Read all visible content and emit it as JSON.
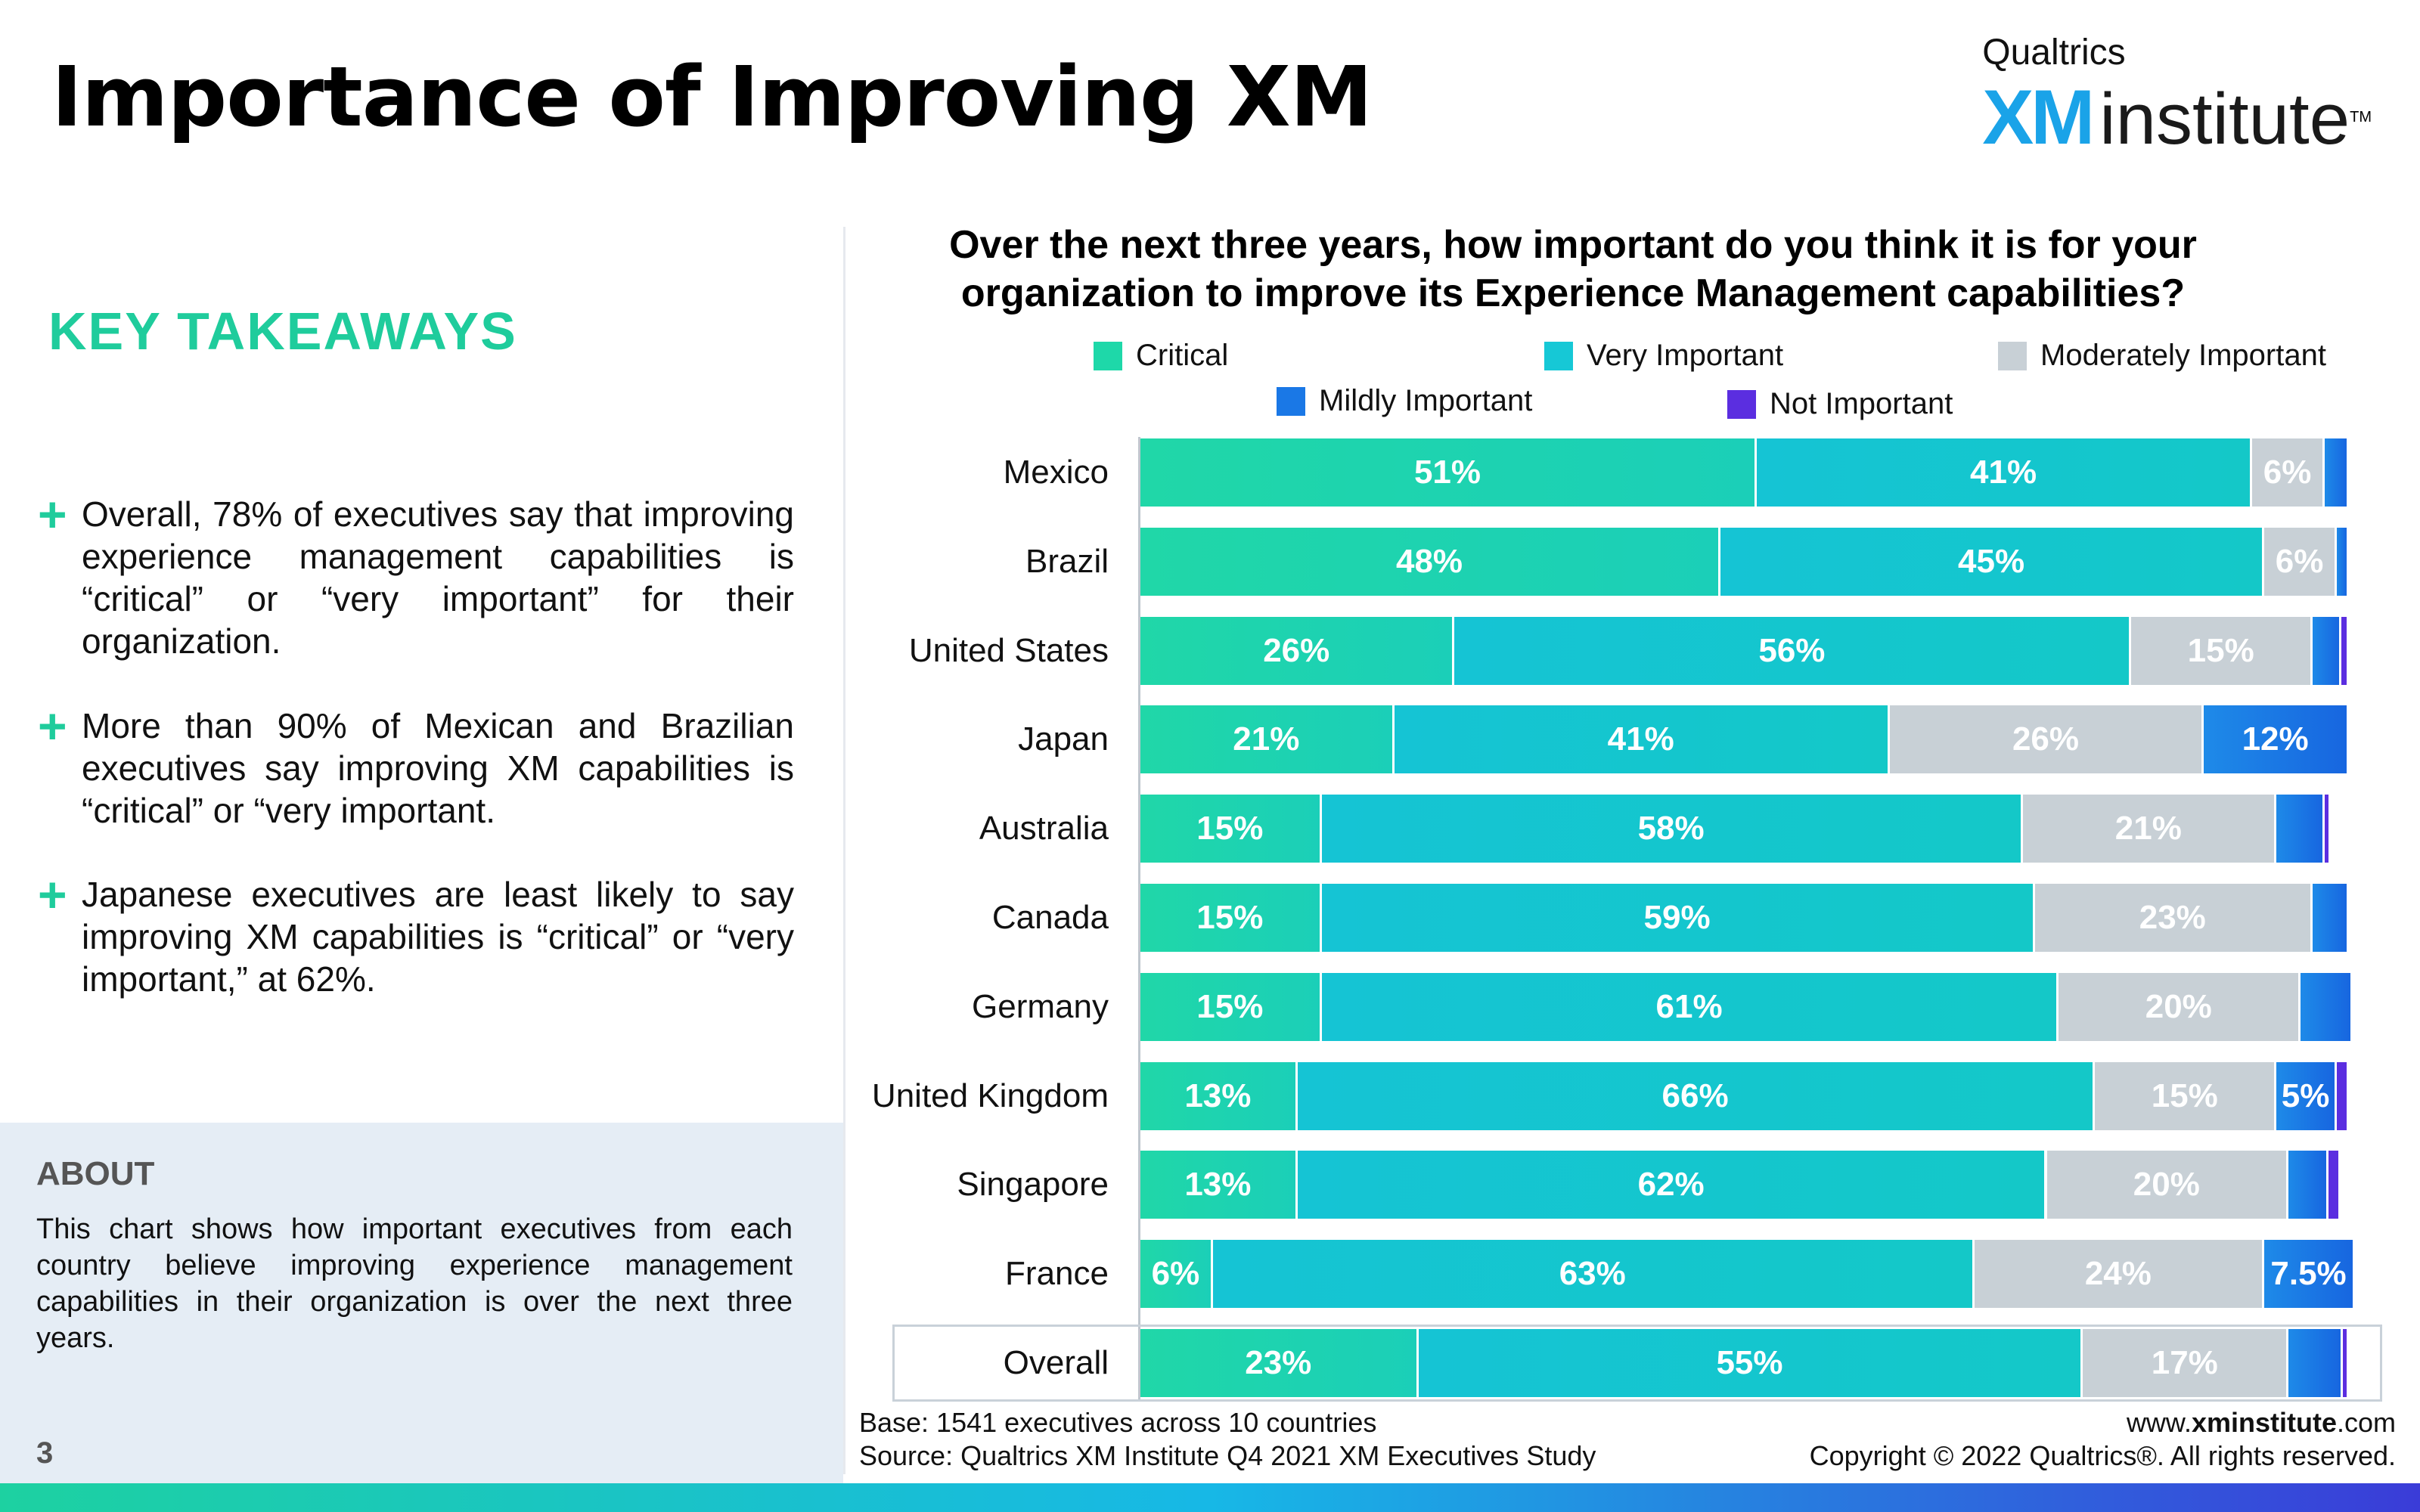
{
  "header": {
    "title": "Importance of Improving XM",
    "logo": {
      "brand": "Qualtrics",
      "xm": "XM",
      "institute": "institute",
      "tm": "TM"
    }
  },
  "takeaways": {
    "heading": "KEY TAKEAWAYS",
    "bullet_symbol": "+",
    "items": [
      "Overall, 78% of executives say that improving experience management capabilities is “critical” or “very important” for their organization.",
      "More than 90% of Mexican and Brazilian executives say improving XM capabilities is “critical” or “very important.",
      "Japanese executives are least likely to say improving XM capabilities is “critical” or “very important,” at 62%."
    ]
  },
  "about": {
    "heading": "ABOUT",
    "text": "This chart shows how important executives from each country believe improving experience management capabilities in their organization is over the next three years."
  },
  "page_number": "3",
  "footer": {
    "base": "Base: 1541 executives across 10 countries",
    "source": "Source: Qualtrics XM Institute Q4 2021 XM Executives Study",
    "url_prefix": "www.",
    "url_bold": "xminstitute",
    "url_suffix": ".com",
    "copyright": "Copyright © 2022 Qualtrics®. All rights reserved."
  },
  "colors": {
    "critical": "#1ed8a9",
    "very_important": "#16c8d6",
    "moderately_important": "#c8d0d6",
    "mildly_important": "#1a78e6",
    "not_important": "#5b2ee0"
  },
  "chart_data": {
    "type": "bar",
    "orientation": "horizontal",
    "stacked": true,
    "title": "Over the next three years, how important do you think it is for your organization to improve its Experience Management capabilities?",
    "categories": [
      "Mexico",
      "Brazil",
      "United States",
      "Japan",
      "Australia",
      "Canada",
      "Germany",
      "United Kingdom",
      "Singapore",
      "France",
      "Overall"
    ],
    "series": [
      {
        "name": "Critical",
        "values": [
          51,
          48,
          26,
          21,
          15,
          15,
          15,
          13,
          13,
          6,
          23
        ]
      },
      {
        "name": "Very Important",
        "values": [
          41,
          45,
          56,
          41,
          58,
          59,
          61,
          66,
          62,
          63,
          55
        ]
      },
      {
        "name": "Moderately Important",
        "values": [
          6,
          6,
          15,
          26,
          21,
          23,
          20,
          15,
          20,
          24,
          17
        ]
      },
      {
        "name": "Mildly Important",
        "values": [
          2,
          1,
          2.4,
          12,
          4,
          3,
          4.3,
          5,
          3.3,
          7.5,
          4.5
        ]
      },
      {
        "name": "Not Important",
        "values": [
          0,
          0,
          0.6,
          0,
          0.5,
          0,
          0,
          1,
          1,
          0,
          0.5
        ]
      }
    ],
    "xlim": [
      0,
      100
    ],
    "legend_position": "top"
  }
}
